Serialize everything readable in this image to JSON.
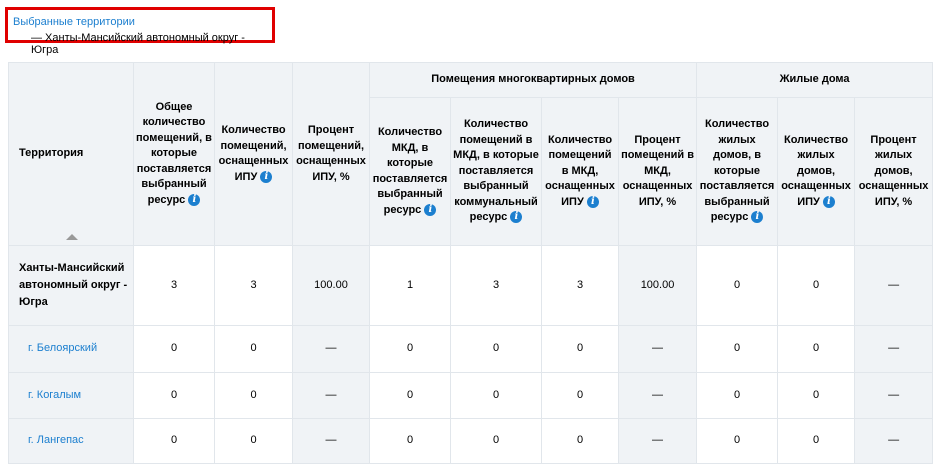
{
  "selection": {
    "title": "Выбранные территории",
    "value": "— Ханты-Мансийский автономный округ - Югра"
  },
  "table": {
    "territory_header": "Территория",
    "groups": {
      "mkd": "Помещения многоквартирных домов",
      "houses": "Жилые дома"
    },
    "columns": [
      {
        "label": "Общее количество помещений, в которые поставляется выбранный ресурс",
        "info": true
      },
      {
        "label": "Количество помещений, оснащенных ИПУ",
        "info": true
      },
      {
        "label": "Процент помещений, оснащенных ИПУ, %",
        "info": false
      },
      {
        "label": "Количество МКД, в которые поставляется выбранный ресурс",
        "info": true
      },
      {
        "label": "Количество помещений в МКД, в которые поставляется выбранный коммунальный ресурс",
        "info": true
      },
      {
        "label": "Количество помещений в МКД, оснащенных ИПУ",
        "info": true
      },
      {
        "label": "Процент помещений в МКД, оснащенных ИПУ, %",
        "info": false
      },
      {
        "label": "Количество жилых домов, в которые поставляется выбранный ресурс",
        "info": true
      },
      {
        "label": "Количество жилых домов, оснащенных ИПУ",
        "info": true
      },
      {
        "label": "Процент жилых домов, оснащенных ИПУ, %",
        "info": false
      }
    ],
    "rows": [
      {
        "name": "Ханты-Мансийский автономный округ - Югра",
        "values": [
          "3",
          "3",
          "100.00",
          "1",
          "3",
          "3",
          "100.00",
          "0",
          "0",
          "—"
        ]
      },
      {
        "name": "г. Белоярский",
        "values": [
          "0",
          "0",
          "—",
          "0",
          "0",
          "0",
          "—",
          "0",
          "0",
          "—"
        ]
      },
      {
        "name": "г. Когалым",
        "values": [
          "0",
          "0",
          "—",
          "0",
          "0",
          "0",
          "—",
          "0",
          "0",
          "—"
        ]
      },
      {
        "name": "г. Лангепас",
        "values": [
          "0",
          "0",
          "—",
          "0",
          "0",
          "0",
          "—",
          "0",
          "0",
          "—"
        ]
      }
    ]
  }
}
